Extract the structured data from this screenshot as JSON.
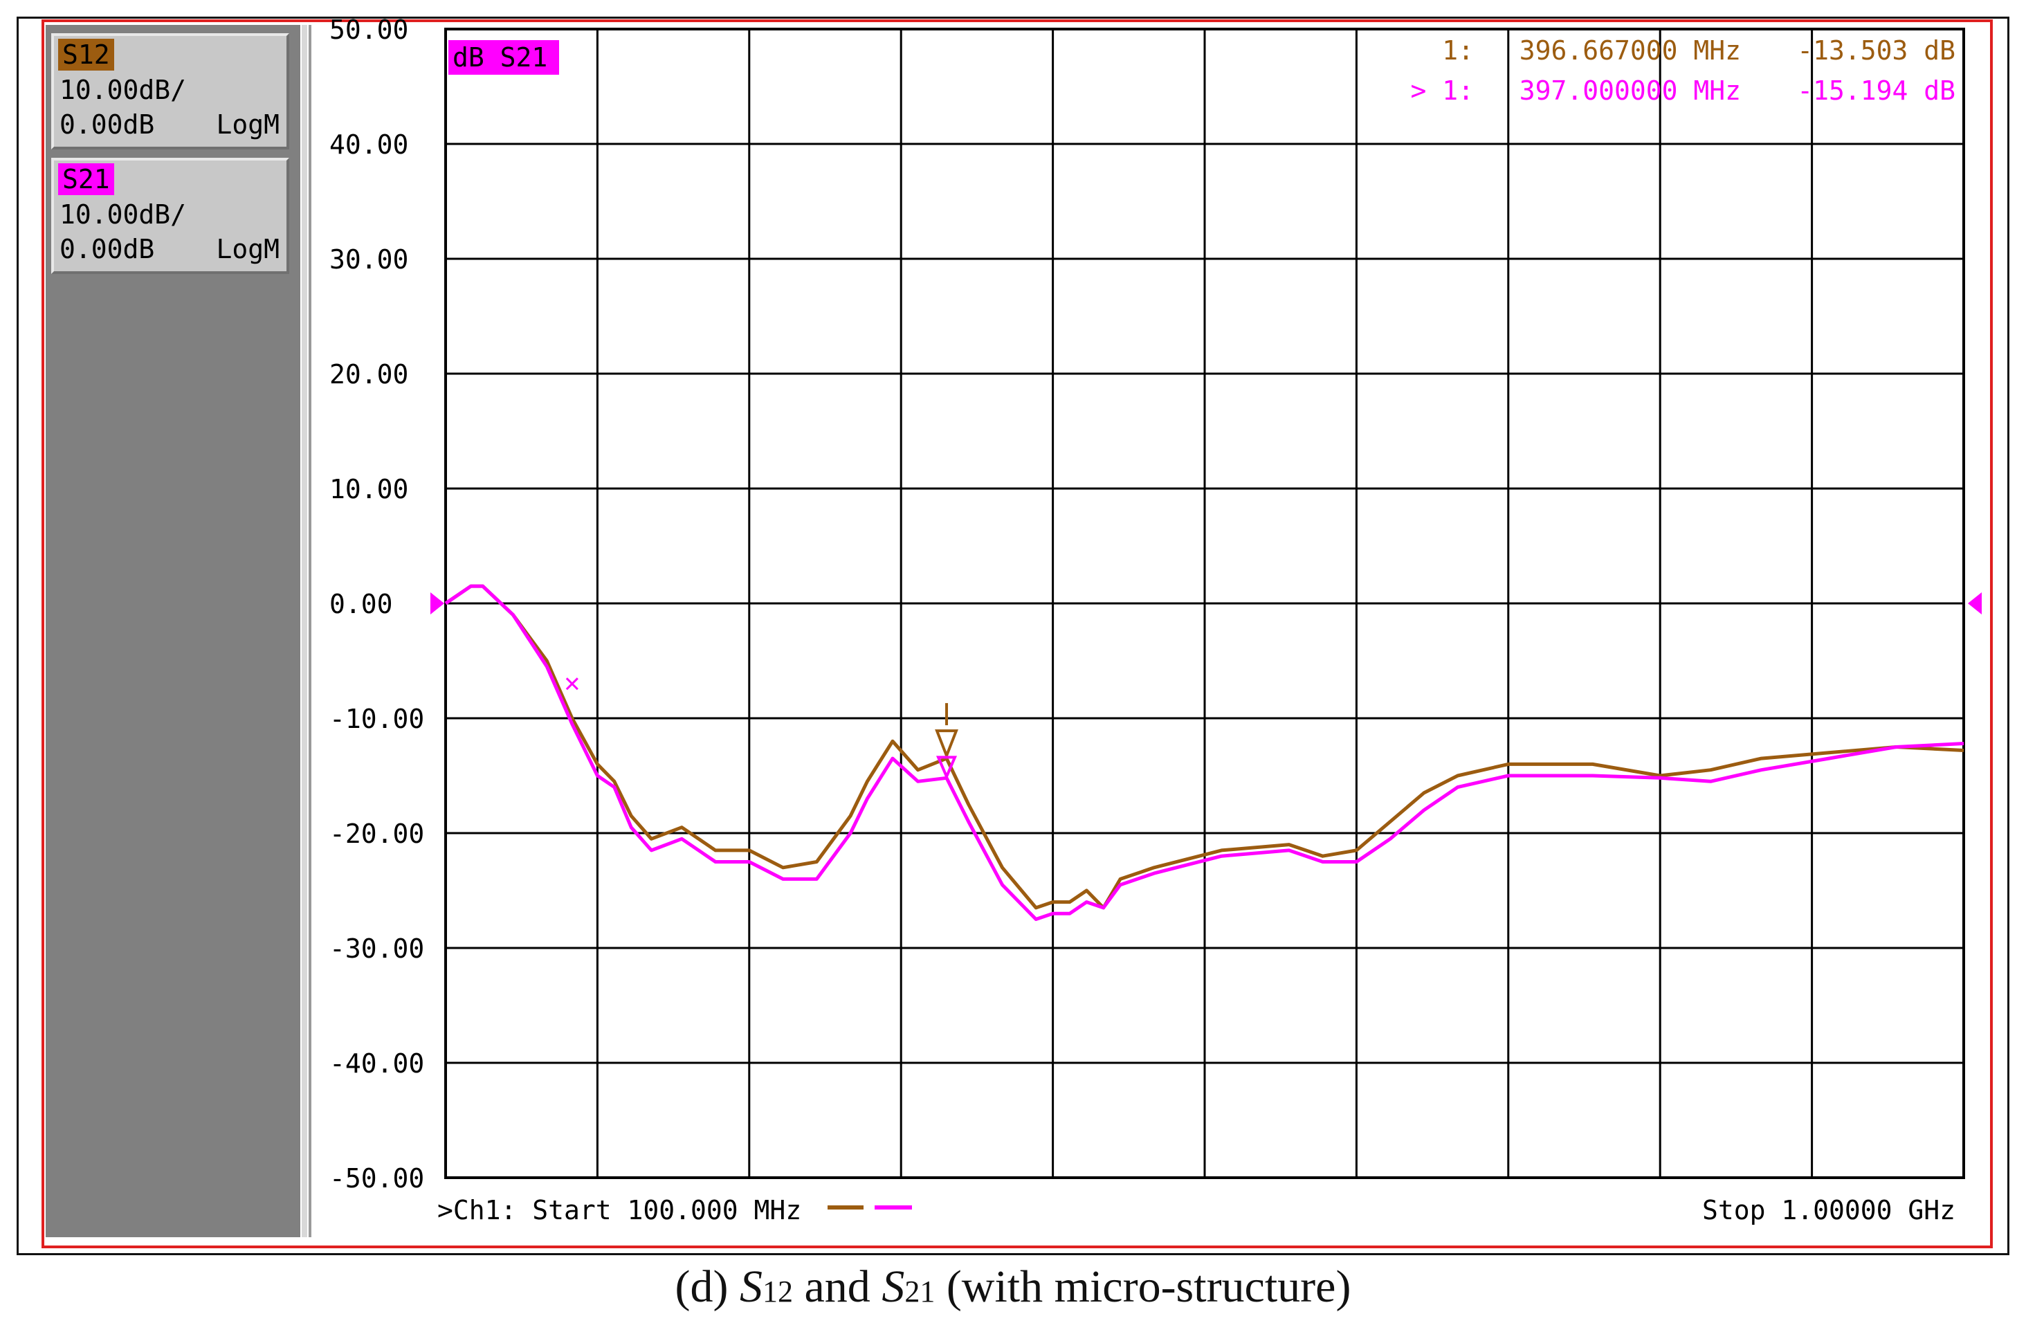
{
  "sidebar": {
    "traces": [
      {
        "name": "S12",
        "scale": "10.00dB/",
        "ref": "0.00dB",
        "format": "LogM",
        "color": "#9c5c10"
      },
      {
        "name": "S21",
        "scale": "10.00dB/",
        "ref": "0.00dB",
        "format": "LogM",
        "color": "#ff00ff"
      }
    ]
  },
  "plot": {
    "active_trace_label": "dB S21",
    "markers": [
      {
        "label": "1:",
        "freq": "396.667000 MHz",
        "value": "-13.503 dB",
        "color": "#9c5c10"
      },
      {
        "label": "> 1:",
        "freq": "397.000000 MHz",
        "value": "-15.194 dB",
        "color": "#ff00ff"
      }
    ],
    "footer_left": ">Ch1: Start  100.000 MHz",
    "footer_right": "Stop  1.00000 GHz"
  },
  "chart_data": {
    "type": "line",
    "ylim": [
      -50,
      50
    ],
    "xlim": [
      100,
      1000
    ],
    "y_ticks": [
      "50.00",
      "40.00",
      "30.00",
      "20.00",
      "10.00",
      "0.00",
      "-10.00",
      "-20.00",
      "-30.00",
      "-40.00",
      "-50.00"
    ],
    "grid": true,
    "series": [
      {
        "name": "S12",
        "color": "#9c5c10",
        "x": [
          100,
          115,
          122,
          140,
          160,
          175,
          190,
          200,
          210,
          222,
          240,
          260,
          280,
          300,
          320,
          340,
          350,
          365,
          380,
          397,
          410,
          430,
          450,
          460,
          470,
          480,
          490,
          500,
          520,
          560,
          600,
          620,
          640,
          660,
          680,
          700,
          730,
          780,
          820,
          850,
          880,
          920,
          960,
          1000
        ],
        "y": [
          0,
          1.5,
          1.5,
          -1,
          -5,
          -10,
          -14,
          -15.5,
          -18.5,
          -20.5,
          -19.5,
          -21.5,
          -21.5,
          -23,
          -22.5,
          -18.5,
          -15.5,
          -12,
          -14.5,
          -13.5,
          -17.5,
          -23,
          -26.5,
          -26,
          -26,
          -25,
          -26.5,
          -24,
          -23,
          -21.5,
          -21,
          -22,
          -21.5,
          -19,
          -16.5,
          -15,
          -14,
          -14,
          -15,
          -14.5,
          -13.5,
          -13,
          -12.5,
          -12.8
        ]
      },
      {
        "name": "S21",
        "color": "#ff00ff",
        "x": [
          100,
          115,
          122,
          140,
          160,
          175,
          190,
          200,
          210,
          222,
          240,
          260,
          280,
          300,
          320,
          340,
          350,
          365,
          380,
          397,
          410,
          430,
          450,
          460,
          470,
          480,
          490,
          500,
          520,
          560,
          600,
          620,
          640,
          660,
          680,
          700,
          730,
          780,
          820,
          850,
          880,
          920,
          960,
          1000
        ],
        "y": [
          0,
          1.5,
          1.5,
          -1,
          -5.5,
          -10.5,
          -15,
          -16,
          -19.5,
          -21.5,
          -20.5,
          -22.5,
          -22.5,
          -24,
          -24,
          -20,
          -17,
          -13.5,
          -15.5,
          -15.2,
          -19,
          -24.5,
          -27.5,
          -27,
          -27,
          -26,
          -26.5,
          -24.5,
          -23.5,
          -22,
          -21.5,
          -22.5,
          -22.5,
          -20.5,
          -18,
          -16,
          -15,
          -15,
          -15.2,
          -15.5,
          -14.5,
          -13.5,
          -12.5,
          -12.2
        ]
      }
    ]
  },
  "caption": {
    "prefix": "(d) ",
    "s1": "S",
    "sub1": "12",
    "mid": " and ",
    "s2": "S",
    "sub2": "21",
    "suffix": " (with micro-structure)"
  }
}
